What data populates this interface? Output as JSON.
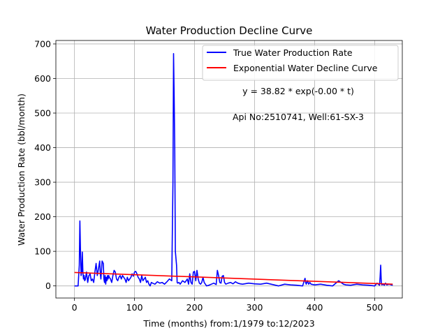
{
  "chart_data": {
    "type": "line",
    "title": "Water Production Decline Curve",
    "xlabel": "Time (months) from:1/1979 to:12/2023",
    "ylabel": "Water Production Rate (bbl/month)",
    "xlim": [
      -31,
      546
    ],
    "ylim": [
      -35,
      710
    ],
    "xticks": [
      0,
      100,
      200,
      300,
      400,
      500
    ],
    "yticks": [
      0,
      100,
      200,
      300,
      400,
      500,
      600,
      700
    ],
    "grid": true,
    "legend_position": "upper-right",
    "annotations": [
      "y = 38.82 * exp(-0.00 * t)",
      "Api No:2510741, Well:61-SX-3"
    ],
    "series": [
      {
        "name": "True Water Production Rate",
        "color": "#0000ff",
        "x": [
          0,
          3,
          6,
          8,
          9,
          10,
          11,
          12,
          13,
          14,
          15,
          16,
          17,
          18,
          20,
          22,
          24,
          26,
          28,
          30,
          32,
          34,
          36,
          38,
          40,
          42,
          43,
          44,
          46,
          48,
          49,
          50,
          51,
          52,
          53,
          54,
          55,
          56,
          57,
          58,
          60,
          62,
          64,
          66,
          68,
          70,
          72,
          74,
          76,
          78,
          80,
          82,
          84,
          86,
          88,
          90,
          92,
          94,
          96,
          98,
          100,
          102,
          104,
          106,
          108,
          110,
          112,
          114,
          116,
          118,
          120,
          122,
          124,
          126,
          128,
          130,
          134,
          138,
          142,
          146,
          150,
          154,
          158,
          162,
          164,
          165,
          166,
          167,
          168,
          169,
          170,
          171,
          172,
          174,
          176,
          180,
          184,
          188,
          190,
          192,
          194,
          196,
          198,
          200,
          202,
          204,
          206,
          208,
          210,
          212,
          214,
          216,
          218,
          220,
          224,
          228,
          232,
          236,
          238,
          240,
          242,
          244,
          246,
          248,
          250,
          252,
          256,
          260,
          264,
          268,
          272,
          276,
          280,
          290,
          300,
          310,
          320,
          330,
          340,
          350,
          360,
          370,
          380,
          384,
          385,
          386,
          388,
          390,
          392,
          394,
          400,
          410,
          420,
          430,
          440,
          444,
          448,
          452,
          460,
          470,
          480,
          490,
          500,
          504,
          506,
          508,
          509,
          510,
          511,
          512,
          514,
          516,
          518,
          520,
          524,
          528,
          530
        ],
        "y": [
          0,
          0,
          0,
          60,
          188,
          100,
          30,
          40,
          98,
          40,
          20,
          30,
          15,
          18,
          40,
          10,
          30,
          35,
          15,
          20,
          10,
          40,
          65,
          30,
          50,
          72,
          35,
          20,
          72,
          65,
          20,
          10,
          30,
          5,
          25,
          15,
          30,
          20,
          30,
          25,
          20,
          10,
          30,
          45,
          40,
          20,
          15,
          25,
          30,
          20,
          30,
          25,
          20,
          10,
          25,
          15,
          20,
          25,
          35,
          28,
          40,
          42,
          35,
          25,
          20,
          10,
          30,
          15,
          20,
          25,
          10,
          15,
          5,
          0,
          10,
          8,
          5,
          12,
          8,
          10,
          5,
          12,
          20,
          15,
          300,
          672,
          550,
          400,
          100,
          80,
          60,
          10,
          8,
          10,
          5,
          15,
          10,
          20,
          5,
          35,
          10,
          5,
          40,
          42,
          15,
          45,
          20,
          8,
          5,
          10,
          25,
          10,
          5,
          0,
          2,
          5,
          8,
          4,
          45,
          30,
          10,
          8,
          28,
          30,
          10,
          5,
          8,
          10,
          6,
          12,
          8,
          6,
          5,
          8,
          6,
          5,
          8,
          4,
          0,
          5,
          3,
          2,
          0,
          22,
          10,
          5,
          15,
          5,
          10,
          5,
          3,
          5,
          2,
          0,
          15,
          10,
          5,
          3,
          2,
          5,
          3,
          2,
          0,
          8,
          5,
          2,
          25,
          60,
          10,
          3,
          5,
          2,
          8,
          3,
          5,
          3,
          2
        ]
      },
      {
        "name": "Exponential Water Decline Curve",
        "color": "#ff0000",
        "x": [
          0,
          530
        ],
        "y": [
          38.82,
          5
        ]
      }
    ]
  }
}
